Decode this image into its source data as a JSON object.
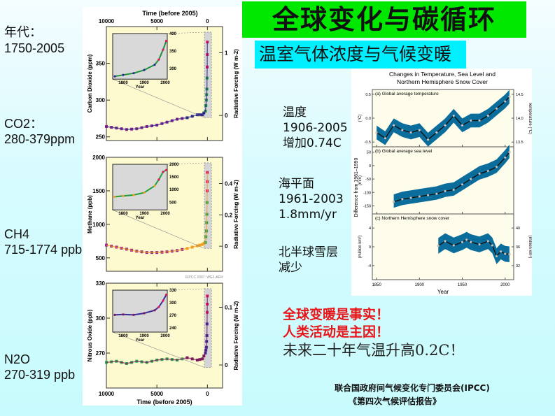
{
  "slide": {
    "title": "全球变化与碳循环",
    "subtitle": "温室气体浓度与气候变暖"
  },
  "left_labels": {
    "period_label": "年代：",
    "period_value": "1750-2005",
    "co2_label": "CO2：",
    "co2_value": "280-379ppm",
    "ch4_label": "CH4",
    "ch4_value": "715-1774 ppb",
    "n2o_label": "N2O",
    "n2o_value": "270-319 ppb"
  },
  "right_labels": {
    "temp_label": "温度",
    "temp_period": "1906-2005",
    "temp_change": "增加0.74C",
    "sea_label": "海平面",
    "sea_period": "1961-2003",
    "sea_rate": "1.8mm/yr",
    "snow_label": "北半球雪层",
    "snow_change": "减少"
  },
  "conclusions": {
    "line1": "全球变暖是事实！",
    "line2": "人类活动是主因！",
    "line3": "未来二十年气温升高0.2C！"
  },
  "source": {
    "line1": "联合国政府间气候变化专门委员会(IPCC)",
    "line2": "《第四次气候评估报告》"
  },
  "colors": {
    "title_bg": "#00e800",
    "subtitle_bg": "#00f0ff",
    "conclusion_red": "#e8161a",
    "plot_bg": "#fdfad0",
    "band_blue": "#0b6d9b"
  },
  "chart_data": [
    {
      "type": "scatter",
      "title": "Carbon Dioxide",
      "top_axis_label": "Time (before 2005)",
      "xlabel": "Time (before 2005)",
      "ylabel": "Carbon Dioxide (ppm)",
      "y2label": "Radiative Forcing (W m-2)",
      "x_ticks": [
        "10000",
        "5000",
        "0"
      ],
      "y_ticks": [
        "250",
        "300",
        "350"
      ],
      "y2_ticks": [
        "0",
        "1"
      ],
      "xlim": [
        10000,
        -1500
      ],
      "ylim": [
        245,
        400
      ],
      "x": [
        10000,
        9000,
        8000,
        7000,
        6000,
        5000,
        4000,
        3000,
        2000,
        1000,
        500,
        200,
        100,
        50,
        20,
        0
      ],
      "y": [
        264,
        262,
        260,
        261,
        264,
        266,
        270,
        274,
        276,
        280,
        280,
        285,
        300,
        315,
        345,
        379
      ],
      "inset": {
        "xlabel": "Year",
        "x_ticks": [
          "1800",
          "1900",
          "2000"
        ],
        "y_ticks": [
          "300",
          "350",
          "400"
        ],
        "x": [
          1760,
          1800,
          1850,
          1900,
          1950,
          1970,
          1990,
          2005
        ],
        "y": [
          278,
          282,
          287,
          296,
          311,
          326,
          354,
          379
        ]
      }
    },
    {
      "type": "scatter",
      "title": "Methane",
      "ylabel": "Methane (ppb)",
      "y2label": "Radiative Forcing (W m-2)",
      "x_ticks": [
        "10000",
        "5000",
        "0"
      ],
      "y_ticks": [
        "500",
        "1000",
        "1500",
        "2000"
      ],
      "y2_ticks": [
        "0",
        "0.2",
        "0.4"
      ],
      "xlim": [
        10000,
        -1500
      ],
      "ylim": [
        300,
        2000
      ],
      "x": [
        10000,
        9000,
        8000,
        7000,
        6000,
        5000,
        4000,
        3000,
        2000,
        1000,
        500,
        200,
        100,
        50,
        20,
        0
      ],
      "y": [
        690,
        660,
        630,
        600,
        580,
        580,
        590,
        610,
        640,
        680,
        700,
        730,
        900,
        1150,
        1500,
        1774
      ],
      "inset": {
        "xlabel": "Year",
        "x_ticks": [
          "1800",
          "1900",
          "2000"
        ],
        "y_ticks": [
          "500",
          "1000",
          "1500",
          "2000"
        ],
        "x": [
          1760,
          1800,
          1850,
          1900,
          1950,
          1970,
          1990,
          2005
        ],
        "y": [
          720,
          750,
          790,
          880,
          1150,
          1400,
          1700,
          1774
        ]
      },
      "annotation": "©IPCC 2007: WG1-AR4"
    },
    {
      "type": "scatter",
      "title": "Nitrous Oxide",
      "ylabel": "Nitrous Oxide (ppb)",
      "y2label": "Radiative Forcing (W m-2)",
      "xlabel": "Time (before 2005)",
      "x_ticks": [
        "10000",
        "5000",
        "0"
      ],
      "y_ticks": [
        "270",
        "300",
        "330"
      ],
      "y2_ticks": [
        "0",
        "0.1"
      ],
      "xlim": [
        10000,
        -1500
      ],
      "ylim": [
        240,
        330
      ],
      "x": [
        10000,
        9000,
        8000,
        7000,
        6000,
        5000,
        4000,
        3000,
        2000,
        1000,
        500,
        200,
        100,
        50,
        20,
        0
      ],
      "y": [
        262,
        263,
        261,
        263,
        262,
        264,
        265,
        264,
        266,
        264,
        265,
        270,
        275,
        285,
        305,
        319
      ],
      "inset": {
        "xlabel": "Year",
        "x_ticks": [
          "1800",
          "1900",
          "2000"
        ],
        "y_ticks": [
          "240",
          "270",
          "300",
          "330"
        ],
        "x": [
          1760,
          1800,
          1850,
          1900,
          1950,
          1970,
          1990,
          2005
        ],
        "y": [
          271,
          272,
          271,
          275,
          282,
          290,
          305,
          319
        ]
      }
    },
    {
      "type": "line",
      "title": "Changes in Temperature, Sea Level and Northern Hemisphere Snow Cover",
      "ylabel": "Difference from 1961–1990",
      "xlabel": "Year",
      "x_ticks": [
        "1850",
        "1900",
        "1950",
        "2000"
      ],
      "xlim": [
        1845,
        2010
      ],
      "panels": [
        {
          "label": "(a) Global average temperature",
          "ylabel": "(°C)",
          "y2label": "Temperature (°C)",
          "y_ticks": [
            "0.5",
            "0.0",
            "-0.5"
          ],
          "y2_ticks": [
            "14.5",
            "14.0",
            "13.5"
          ],
          "ylim": [
            -0.6,
            0.6
          ],
          "x": [
            1850,
            1860,
            1870,
            1880,
            1890,
            1900,
            1910,
            1920,
            1930,
            1940,
            1950,
            1960,
            1970,
            1980,
            1990,
            2000,
            2005
          ],
          "y": [
            -0.3,
            -0.42,
            -0.15,
            -0.25,
            -0.3,
            -0.25,
            -0.45,
            -0.3,
            -0.15,
            0.05,
            -0.15,
            -0.05,
            -0.05,
            0.05,
            0.2,
            0.35,
            0.45
          ]
        },
        {
          "label": "(b) Global average sea level",
          "ylabel": "(mm)",
          "y_ticks": [
            "50",
            "0",
            "-50",
            "-100",
            "-150"
          ],
          "ylim": [
            -180,
            70
          ],
          "x": [
            1870,
            1880,
            1890,
            1900,
            1910,
            1920,
            1930,
            1940,
            1950,
            1960,
            1970,
            1980,
            1990,
            2000,
            2005
          ],
          "y": [
            -135,
            -125,
            -120,
            -115,
            -110,
            -105,
            -95,
            -90,
            -70,
            -50,
            -30,
            -20,
            -5,
            30,
            50
          ]
        },
        {
          "label": "(c) Northern Hemisphere snow cover",
          "ylabel": "(million km²)",
          "y2label": "(million km²)",
          "y_ticks": [
            "4",
            "0",
            "-4"
          ],
          "y2_ticks": [
            "40",
            "36",
            "32"
          ],
          "ylim": [
            -7,
            7
          ],
          "x": [
            1922,
            1930,
            1940,
            1950,
            1955,
            1960,
            1970,
            1980,
            1985,
            1990,
            1995,
            2000,
            2005
          ],
          "y": [
            0.2,
            1.2,
            0.3,
            1.0,
            1.5,
            1.0,
            0.5,
            1.2,
            0.3,
            -2.0,
            -1.0,
            -1.5,
            -1.6
          ]
        }
      ]
    }
  ]
}
